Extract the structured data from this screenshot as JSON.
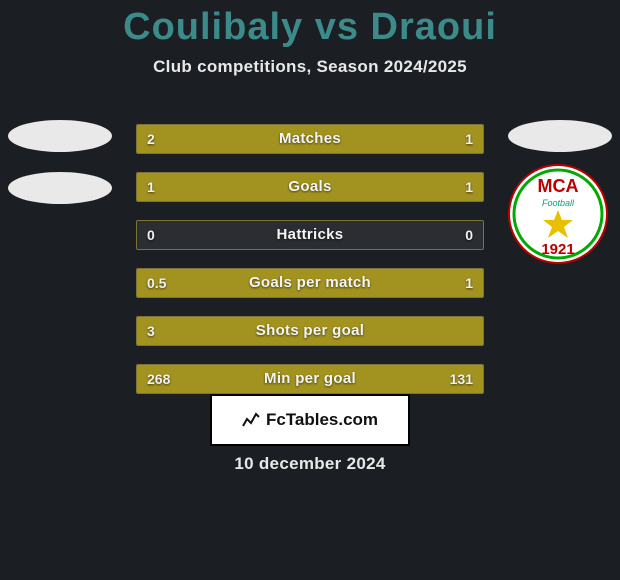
{
  "title": "Coulibaly vs Draoui",
  "subtitle": "Club competitions, Season 2024/2025",
  "date": "10 december 2024",
  "brand": "FcTables.com",
  "colors": {
    "page_bg": "#1b1e22",
    "title_color": "#3d8a8a",
    "bar_fill": "#a29320",
    "bar_border": "#7c7334",
    "bar_bg": "#2a2d31",
    "text": "#f5f5f5",
    "brand_bg": "#ffffff"
  },
  "left_logo": {
    "type": "placeholder-ovals"
  },
  "right_logo": {
    "type": "mca",
    "text_top": "MCA",
    "text_mid": "Football",
    "text_year": "1921"
  },
  "stats": [
    {
      "label": "Matches",
      "left_val": "2",
      "right_val": "1",
      "left_pct": 66,
      "right_pct": 34
    },
    {
      "label": "Goals",
      "left_val": "1",
      "right_val": "1",
      "left_pct": 50,
      "right_pct": 50
    },
    {
      "label": "Hattricks",
      "left_val": "0",
      "right_val": "0",
      "left_pct": 0,
      "right_pct": 0
    },
    {
      "label": "Goals per match",
      "left_val": "0.5",
      "right_val": "1",
      "left_pct": 34,
      "right_pct": 66
    },
    {
      "label": "Shots per goal",
      "left_val": "3",
      "right_val": "",
      "left_pct": 100,
      "right_pct": 0
    },
    {
      "label": "Min per goal",
      "left_val": "268",
      "right_val": "131",
      "left_pct": 66,
      "right_pct": 34
    }
  ]
}
